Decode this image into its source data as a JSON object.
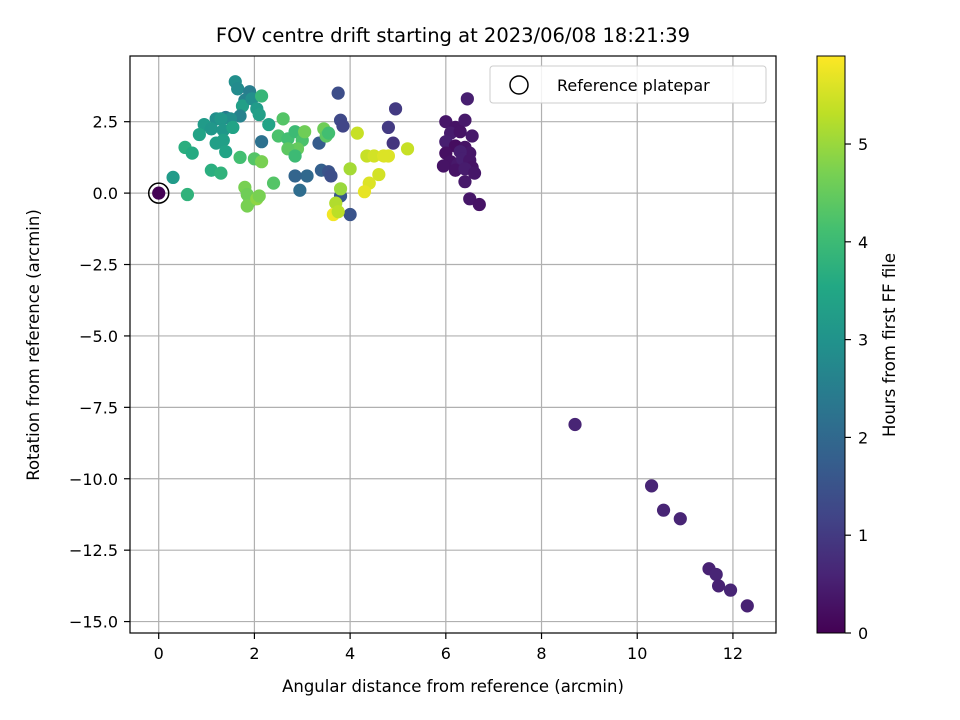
{
  "chart_data": {
    "type": "scatter",
    "title": "FOV centre drift starting at 2023/06/08 18:21:39",
    "xlabel": "Angular distance from reference (arcmin)",
    "ylabel": "Rotation from reference (arcmin)",
    "xlim": [
      -0.6,
      12.9
    ],
    "ylim": [
      -15.4,
      4.8
    ],
    "xticks": [
      0,
      2,
      4,
      6,
      8,
      10,
      12
    ],
    "yticks": [
      2.5,
      0.0,
      -2.5,
      -5.0,
      -7.5,
      -10.0,
      -12.5,
      -15.0
    ],
    "ytick_labels": [
      "2.5",
      "0.0",
      "−2.5",
      "−5.0",
      "−7.5",
      "−10.0",
      "−12.5",
      "−15.0"
    ],
    "grid": true,
    "legend": {
      "position": "top-right",
      "entries": [
        "Reference platepar"
      ]
    },
    "reference_point": {
      "x": 0,
      "y": 0
    },
    "colorbar": {
      "label": "Hours from first FF file",
      "range": [
        0,
        5.9
      ],
      "ticks": [
        0,
        1,
        2,
        3,
        4,
        5
      ],
      "colormap": "viridis"
    },
    "points": [
      [
        0.0,
        0.0,
        0.02
      ],
      [
        6.45,
        3.3,
        0.5
      ],
      [
        6.0,
        2.5,
        0.35
      ],
      [
        6.2,
        2.3,
        0.3
      ],
      [
        6.4,
        2.55,
        0.4
      ],
      [
        6.1,
        2.1,
        0.45
      ],
      [
        6.3,
        2.15,
        0.3
      ],
      [
        6.55,
        2.0,
        0.4
      ],
      [
        6.0,
        1.8,
        0.5
      ],
      [
        6.2,
        1.65,
        0.2
      ],
      [
        6.4,
        1.6,
        0.3
      ],
      [
        6.5,
        1.4,
        0.35
      ],
      [
        6.3,
        1.45,
        0.5
      ],
      [
        6.0,
        1.4,
        0.25
      ],
      [
        6.1,
        1.1,
        0.3
      ],
      [
        6.25,
        1.0,
        0.4
      ],
      [
        6.35,
        1.2,
        0.5
      ],
      [
        6.5,
        1.15,
        0.35
      ],
      [
        6.55,
        0.9,
        0.3
      ],
      [
        6.2,
        0.8,
        0.3
      ],
      [
        6.4,
        0.85,
        0.45
      ],
      [
        5.95,
        0.95,
        0.3
      ],
      [
        6.6,
        0.7,
        0.35
      ],
      [
        6.4,
        0.4,
        0.4
      ],
      [
        6.5,
        -0.2,
        0.35
      ],
      [
        6.7,
        -0.4,
        0.3
      ],
      [
        8.7,
        -8.1,
        0.6
      ],
      [
        10.3,
        -10.25,
        0.6
      ],
      [
        10.55,
        -11.1,
        0.6
      ],
      [
        10.9,
        -11.4,
        0.6
      ],
      [
        11.5,
        -13.15,
        0.55
      ],
      [
        11.65,
        -13.35,
        0.6
      ],
      [
        11.7,
        -13.75,
        0.55
      ],
      [
        11.95,
        -13.9,
        0.6
      ],
      [
        12.3,
        -14.45,
        0.55
      ],
      [
        4.95,
        2.95,
        1.0
      ],
      [
        4.8,
        2.3,
        1.0
      ],
      [
        4.9,
        1.75,
        0.9
      ],
      [
        3.75,
        3.5,
        1.4
      ],
      [
        3.8,
        2.55,
        1.3
      ],
      [
        3.85,
        2.35,
        1.2
      ],
      [
        3.35,
        1.75,
        1.7
      ],
      [
        3.4,
        0.8,
        1.8
      ],
      [
        3.55,
        0.75,
        1.5
      ],
      [
        3.6,
        0.6,
        1.4
      ],
      [
        3.8,
        -0.1,
        1.6
      ],
      [
        4.0,
        -0.75,
        1.5
      ],
      [
        3.1,
        0.6,
        2.0
      ],
      [
        2.95,
        0.1,
        2.1
      ],
      [
        2.85,
        0.6,
        1.9
      ],
      [
        2.15,
        1.8,
        2.2
      ],
      [
        1.6,
        3.9,
        2.9
      ],
      [
        1.65,
        3.65,
        2.8
      ],
      [
        1.9,
        3.55,
        2.5
      ],
      [
        1.8,
        3.25,
        2.6
      ],
      [
        1.75,
        3.05,
        3.3
      ],
      [
        1.95,
        3.3,
        2.9
      ],
      [
        2.15,
        3.4,
        3.9
      ],
      [
        2.05,
        2.95,
        3.2
      ],
      [
        2.1,
        2.75,
        3.3
      ],
      [
        1.7,
        2.7,
        2.6
      ],
      [
        1.4,
        2.65,
        2.4
      ],
      [
        1.5,
        2.6,
        2.9
      ],
      [
        1.2,
        2.6,
        2.9
      ],
      [
        1.3,
        2.6,
        3.1
      ],
      [
        0.95,
        2.4,
        3.2
      ],
      [
        1.1,
        2.25,
        3.1
      ],
      [
        0.85,
        2.05,
        3.4
      ],
      [
        1.35,
        2.2,
        3.1
      ],
      [
        1.55,
        2.3,
        3.4
      ],
      [
        2.3,
        2.4,
        3.4
      ],
      [
        1.2,
        1.75,
        3.3
      ],
      [
        1.35,
        1.85,
        3.3
      ],
      [
        1.4,
        1.45,
        3.4
      ],
      [
        0.55,
        1.6,
        3.7
      ],
      [
        0.7,
        1.4,
        3.6
      ],
      [
        1.1,
        0.8,
        3.7
      ],
      [
        1.3,
        0.7,
        3.8
      ],
      [
        0.3,
        0.55,
        3.2
      ],
      [
        0.6,
        -0.05,
        3.8
      ],
      [
        1.7,
        1.25,
        4.1
      ],
      [
        2.6,
        2.6,
        4.3
      ],
      [
        2.5,
        2.0,
        4.2
      ],
      [
        2.7,
        1.9,
        4.1
      ],
      [
        2.85,
        2.15,
        4.0
      ],
      [
        3.0,
        1.85,
        4.2
      ],
      [
        2.9,
        1.55,
        4.5
      ],
      [
        2.7,
        1.55,
        4.4
      ],
      [
        2.85,
        1.3,
        4.0
      ],
      [
        3.05,
        2.15,
        4.6
      ],
      [
        3.45,
        2.25,
        4.6
      ],
      [
        3.5,
        2.0,
        4.4
      ],
      [
        3.55,
        2.1,
        4.1
      ],
      [
        2.0,
        1.2,
        4.3
      ],
      [
        2.15,
        1.1,
        4.7
      ],
      [
        2.4,
        0.35,
        4.3
      ],
      [
        1.8,
        0.2,
        4.7
      ],
      [
        1.85,
        -0.05,
        4.6
      ],
      [
        1.9,
        -0.3,
        4.6
      ],
      [
        1.85,
        -0.45,
        4.7
      ],
      [
        2.05,
        -0.2,
        4.9
      ],
      [
        2.1,
        -0.1,
        4.7
      ],
      [
        3.8,
        0.15,
        5.0
      ],
      [
        3.7,
        -0.35,
        5.2
      ],
      [
        3.65,
        -0.75,
        5.8
      ],
      [
        3.75,
        -0.65,
        5.3
      ],
      [
        4.0,
        0.85,
        5.1
      ],
      [
        4.15,
        2.1,
        5.4
      ],
      [
        4.35,
        1.3,
        5.4
      ],
      [
        4.5,
        1.3,
        5.5
      ],
      [
        4.7,
        1.3,
        5.6
      ],
      [
        4.8,
        1.3,
        5.6
      ],
      [
        5.2,
        1.55,
        5.4
      ],
      [
        4.6,
        0.65,
        5.5
      ],
      [
        4.4,
        0.35,
        5.6
      ],
      [
        4.3,
        0.05,
        5.7
      ]
    ]
  }
}
